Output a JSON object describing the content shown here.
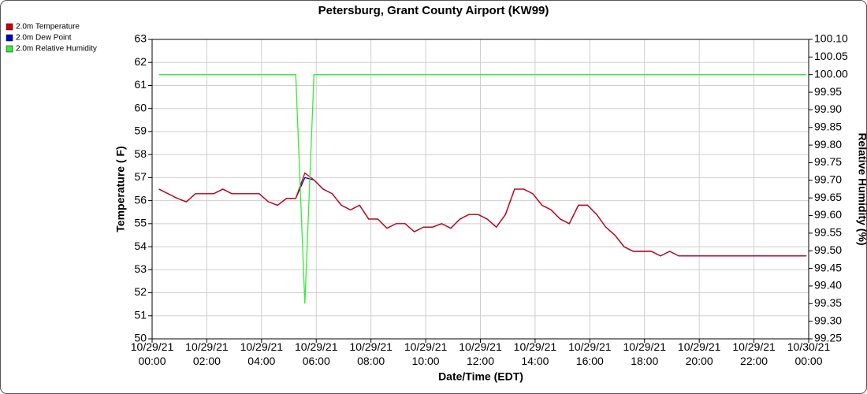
{
  "chart_data": {
    "type": "line",
    "title": "Petersburg, Grant County Airport (KW99)",
    "xlabel": "Date/Time (EDT)",
    "ylabel": "Temperature ( F)",
    "y2label": "Relative Humidity (%)",
    "x": [
      "10/29/21 00:15",
      "10/29/21 00:35",
      "10/29/21 00:55",
      "10/29/21 01:15",
      "10/29/21 01:35",
      "10/29/21 01:55",
      "10/29/21 02:15",
      "10/29/21 02:35",
      "10/29/21 02:55",
      "10/29/21 03:15",
      "10/29/21 03:35",
      "10/29/21 03:55",
      "10/29/21 04:15",
      "10/29/21 04:35",
      "10/29/21 04:55",
      "10/29/21 05:15",
      "10/29/21 05:35",
      "10/29/21 05:55",
      "10/29/21 06:15",
      "10/29/21 06:35",
      "10/29/21 06:55",
      "10/29/21 07:15",
      "10/29/21 07:35",
      "10/29/21 07:55",
      "10/29/21 08:15",
      "10/29/21 08:35",
      "10/29/21 08:55",
      "10/29/21 09:15",
      "10/29/21 09:35",
      "10/29/21 09:55",
      "10/29/21 10:15",
      "10/29/21 10:35",
      "10/29/21 10:55",
      "10/29/21 11:15",
      "10/29/21 11:35",
      "10/29/21 11:55",
      "10/29/21 12:15",
      "10/29/21 12:35",
      "10/29/21 12:55",
      "10/29/21 13:15",
      "10/29/21 13:35",
      "10/29/21 13:55",
      "10/29/21 14:15",
      "10/29/21 14:35",
      "10/29/21 14:55",
      "10/29/21 15:15",
      "10/29/21 15:35",
      "10/29/21 15:55",
      "10/29/21 16:15",
      "10/29/21 16:35",
      "10/29/21 16:55",
      "10/29/21 17:15",
      "10/29/21 17:35",
      "10/29/21 17:55",
      "10/29/21 18:15",
      "10/29/21 18:35",
      "10/29/21 18:55",
      "10/29/21 19:15",
      "10/29/21 19:35",
      "10/29/21 19:55",
      "10/29/21 20:15",
      "10/29/21 20:35",
      "10/29/21 20:55",
      "10/29/21 21:15",
      "10/29/21 21:35",
      "10/29/21 21:55",
      "10/29/21 22:15",
      "10/29/21 22:35",
      "10/29/21 22:55",
      "10/29/21 23:15",
      "10/29/21 23:35",
      "10/29/21 23:55"
    ],
    "series": [
      {
        "name": "2.0m Dew Point",
        "color": "#0000cc",
        "values": [
          56.5,
          56.3,
          56.1,
          55.95,
          56.3,
          56.3,
          56.3,
          56.5,
          56.3,
          56.3,
          56.3,
          56.3,
          55.95,
          55.8,
          56.1,
          56.1,
          57.0,
          56.9,
          56.5,
          56.3,
          55.8,
          55.6,
          55.8,
          55.2,
          55.2,
          54.8,
          55.0,
          55.0,
          54.65,
          54.85,
          54.85,
          55.0,
          54.8,
          55.2,
          55.4,
          55.4,
          55.2,
          54.85,
          55.4,
          56.5,
          56.5,
          56.3,
          55.8,
          55.6,
          55.2,
          55.0,
          55.8,
          55.8,
          55.4,
          54.85,
          54.5,
          54.0,
          53.8,
          53.8,
          53.8,
          53.6,
          53.8,
          53.6,
          53.6,
          53.6,
          53.6,
          53.6,
          53.6,
          53.6,
          53.6,
          53.6,
          53.6,
          53.6,
          53.6,
          53.6,
          53.6,
          53.6
        ]
      },
      {
        "name": "2.0m Temperature",
        "color": "#cc0000",
        "values": [
          56.5,
          56.3,
          56.1,
          55.95,
          56.3,
          56.3,
          56.3,
          56.5,
          56.3,
          56.3,
          56.3,
          56.3,
          55.95,
          55.8,
          56.1,
          56.1,
          57.2,
          56.9,
          56.5,
          56.3,
          55.8,
          55.6,
          55.8,
          55.2,
          55.2,
          54.8,
          55.0,
          55.0,
          54.65,
          54.85,
          54.85,
          55.0,
          54.8,
          55.2,
          55.4,
          55.4,
          55.2,
          54.85,
          55.4,
          56.5,
          56.5,
          56.3,
          55.8,
          55.6,
          55.2,
          55.0,
          55.8,
          55.8,
          55.4,
          54.85,
          54.5,
          54.0,
          53.8,
          53.8,
          53.8,
          53.6,
          53.8,
          53.6,
          53.6,
          53.6,
          53.6,
          53.6,
          53.6,
          53.6,
          53.6,
          53.6,
          53.6,
          53.6,
          53.6,
          53.6,
          53.6,
          53.6
        ]
      },
      {
        "name": "2.0m Relative Humidity",
        "color": "#33ee33",
        "axis": "y2",
        "values": [
          100,
          100,
          100,
          100,
          100,
          100,
          100,
          100,
          100,
          100,
          100,
          100,
          100,
          100,
          100,
          100,
          99.35,
          100,
          100,
          100,
          100,
          100,
          100,
          100,
          100,
          100,
          100,
          100,
          100,
          100,
          100,
          100,
          100,
          100,
          100,
          100,
          100,
          100,
          100,
          100,
          100,
          100,
          100,
          100,
          100,
          100,
          100,
          100,
          100,
          100,
          100,
          100,
          100,
          100,
          100,
          100,
          100,
          100,
          100,
          100,
          100,
          100,
          100,
          100,
          100,
          100,
          100,
          100,
          100,
          100,
          100,
          100
        ]
      }
    ],
    "legend_order": [
      1,
      0,
      2
    ],
    "legend": "upper left",
    "xlim": [
      "10/29/21 00:00",
      "10/30/21 00:00"
    ],
    "xticks": [
      "10/29/21 00:00",
      "10/29/21 02:00",
      "10/29/21 04:00",
      "10/29/21 06:00",
      "10/29/21 08:00",
      "10/29/21 10:00",
      "10/29/21 12:00",
      "10/29/21 14:00",
      "10/29/21 16:00",
      "10/29/21 18:00",
      "10/29/21 20:00",
      "10/29/21 22:00",
      "10/30/21 00:00"
    ],
    "ylim": [
      50,
      63
    ],
    "yticks": [
      50,
      51,
      52,
      53,
      54,
      55,
      56,
      57,
      58,
      59,
      60,
      61,
      62,
      63
    ],
    "y2lim": [
      99.25,
      100.1
    ],
    "y2ticks": [
      99.25,
      {
        "value": 99.3,
        "label": "99.30"
      },
      99.35,
      {
        "value": 99.4,
        "label": "99.40"
      },
      99.45,
      {
        "value": 99.5,
        "label": "99.50"
      },
      99.55,
      {
        "value": 99.6,
        "label": "99.60"
      },
      99.65,
      {
        "value": 99.7,
        "label": "99.70"
      },
      99.75,
      {
        "value": 99.8,
        "label": "99.80"
      },
      99.85,
      {
        "value": 99.9,
        "label": "99.90"
      },
      99.95,
      {
        "value": 100,
        "label": "100.00"
      },
      100.05,
      {
        "value": 100.1,
        "label": "100.10"
      }
    ],
    "grid": true
  }
}
